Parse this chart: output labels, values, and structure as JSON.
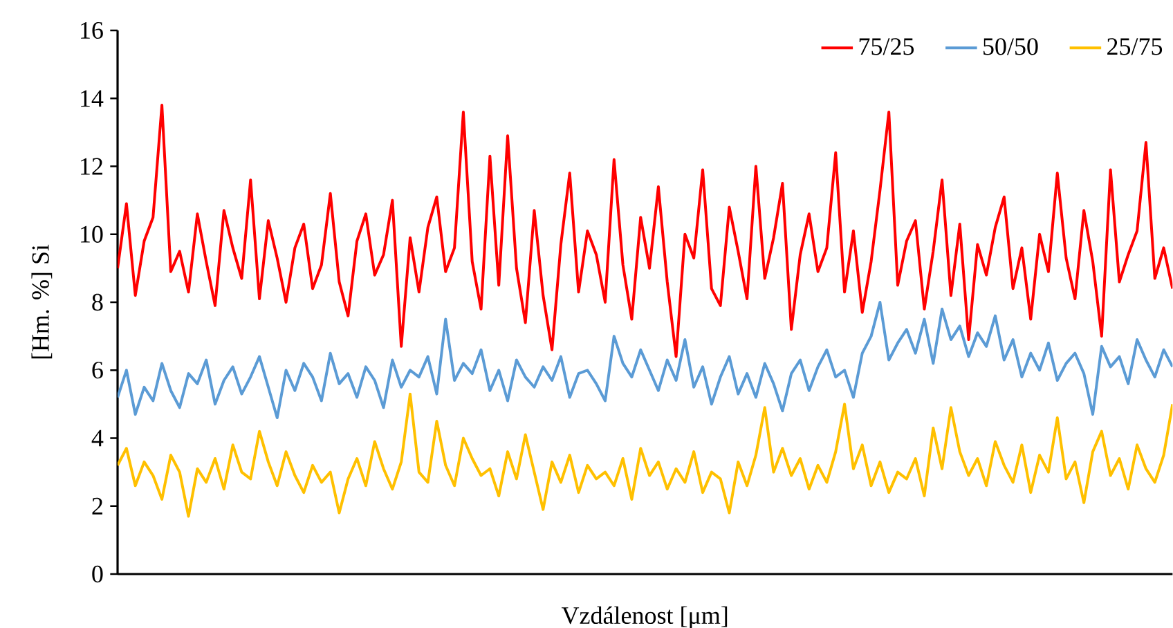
{
  "chart_data": {
    "type": "line",
    "xlabel": "Vzdálenost [μm]",
    "ylabel": "[Hm. %] Si",
    "categories": [
      null,
      null,
      null,
      null,
      null,
      null,
      null,
      null,
      null,
      null,
      null,
      null,
      null,
      null,
      null,
      null,
      null,
      null,
      null,
      null,
      null,
      null,
      null,
      null,
      null,
      null,
      null,
      null,
      null,
      null,
      null,
      null,
      null,
      null,
      null,
      null,
      null,
      null,
      null,
      null,
      null,
      null,
      null,
      null,
      null,
      null,
      null,
      null,
      null,
      null,
      null,
      null,
      null,
      null,
      null,
      null,
      null,
      null,
      null,
      null,
      null,
      null,
      null,
      null,
      null,
      null,
      null,
      null,
      null,
      null,
      null,
      null,
      null,
      null,
      null,
      null,
      null,
      null,
      null,
      null,
      null,
      null,
      null,
      null,
      null,
      null,
      null,
      null,
      null,
      null,
      null,
      null,
      null,
      null,
      null,
      null,
      null,
      null,
      null,
      null,
      null,
      null,
      null,
      null,
      null,
      null,
      null,
      null,
      null,
      null,
      null,
      null,
      null,
      null,
      null,
      null,
      null,
      null,
      null,
      null
    ],
    "series": [
      {
        "name": "75/25",
        "color": "#ff0000",
        "values": [
          9.0,
          10.9,
          8.2,
          9.8,
          10.5,
          13.8,
          8.9,
          9.5,
          8.3,
          10.6,
          9.2,
          7.9,
          10.7,
          9.6,
          8.7,
          11.6,
          8.1,
          10.4,
          9.3,
          8.0,
          9.6,
          10.3,
          8.4,
          9.1,
          11.2,
          8.6,
          7.6,
          9.8,
          10.6,
          8.8,
          9.4,
          11.0,
          6.7,
          9.9,
          8.3,
          10.2,
          11.1,
          8.9,
          9.6,
          13.6,
          9.2,
          7.8,
          12.3,
          8.5,
          12.9,
          9.0,
          7.4,
          10.7,
          8.2,
          6.6,
          9.7,
          11.8,
          8.3,
          10.1,
          9.4,
          8.0,
          12.2,
          9.1,
          7.5,
          10.5,
          9.0,
          11.4,
          8.6,
          6.4,
          10.0,
          9.3,
          11.9,
          8.4,
          7.9,
          10.8,
          9.5,
          8.1,
          12.0,
          8.7,
          9.9,
          11.5,
          7.2,
          9.4,
          10.6,
          8.9,
          9.6,
          12.4,
          8.3,
          10.1,
          7.7,
          9.2,
          11.3,
          13.6,
          8.5,
          9.8,
          10.4,
          7.8,
          9.5,
          11.6,
          8.2,
          10.3,
          6.9,
          9.7,
          8.8,
          10.2,
          11.1,
          8.4,
          9.6,
          7.5,
          10.0,
          8.9,
          11.8,
          9.3,
          8.1,
          10.7,
          9.2,
          7.0,
          11.9,
          8.6,
          9.4,
          10.1,
          12.7,
          8.7,
          9.6,
          8.4
        ]
      },
      {
        "name": "50/50",
        "color": "#5b9bd5",
        "values": [
          5.2,
          6.0,
          4.7,
          5.5,
          5.1,
          6.2,
          5.4,
          4.9,
          5.9,
          5.6,
          6.3,
          5.0,
          5.7,
          6.1,
          5.3,
          5.8,
          6.4,
          5.5,
          4.6,
          6.0,
          5.4,
          6.2,
          5.8,
          5.1,
          6.5,
          5.6,
          5.9,
          5.2,
          6.1,
          5.7,
          4.9,
          6.3,
          5.5,
          6.0,
          5.8,
          6.4,
          5.3,
          7.5,
          5.7,
          6.2,
          5.9,
          6.6,
          5.4,
          6.0,
          5.1,
          6.3,
          5.8,
          5.5,
          6.1,
          5.7,
          6.4,
          5.2,
          5.9,
          6.0,
          5.6,
          5.1,
          7.0,
          6.2,
          5.8,
          6.6,
          6.0,
          5.4,
          6.3,
          5.7,
          6.9,
          5.5,
          6.1,
          5.0,
          5.8,
          6.4,
          5.3,
          5.9,
          5.2,
          6.2,
          5.6,
          4.8,
          5.9,
          6.3,
          5.4,
          6.1,
          6.6,
          5.8,
          6.0,
          5.2,
          6.5,
          7.0,
          8.0,
          6.3,
          6.8,
          7.2,
          6.5,
          7.5,
          6.2,
          7.8,
          6.9,
          7.3,
          6.4,
          7.1,
          6.7,
          7.6,
          6.3,
          6.9,
          5.8,
          6.5,
          6.0,
          6.8,
          5.7,
          6.2,
          6.5,
          5.9,
          4.7,
          6.7,
          6.1,
          6.4,
          5.6,
          6.9,
          6.3,
          5.8,
          6.6,
          6.1
        ]
      },
      {
        "name": "25/75",
        "color": "#ffc000",
        "values": [
          3.2,
          3.7,
          2.6,
          3.3,
          2.9,
          2.2,
          3.5,
          3.0,
          1.7,
          3.1,
          2.7,
          3.4,
          2.5,
          3.8,
          3.0,
          2.8,
          4.2,
          3.3,
          2.6,
          3.6,
          2.9,
          2.4,
          3.2,
          2.7,
          3.0,
          1.8,
          2.8,
          3.4,
          2.6,
          3.9,
          3.1,
          2.5,
          3.3,
          5.3,
          3.0,
          2.7,
          4.5,
          3.2,
          2.6,
          4.0,
          3.4,
          2.9,
          3.1,
          2.3,
          3.6,
          2.8,
          4.1,
          3.0,
          1.9,
          3.3,
          2.7,
          3.5,
          2.4,
          3.2,
          2.8,
          3.0,
          2.6,
          3.4,
          2.2,
          3.7,
          2.9,
          3.3,
          2.5,
          3.1,
          2.7,
          3.6,
          2.4,
          3.0,
          2.8,
          1.8,
          3.3,
          2.6,
          3.5,
          4.9,
          3.0,
          3.7,
          2.9,
          3.4,
          2.5,
          3.2,
          2.7,
          3.6,
          5.0,
          3.1,
          3.8,
          2.6,
          3.3,
          2.4,
          3.0,
          2.8,
          3.4,
          2.3,
          4.3,
          3.1,
          4.9,
          3.6,
          2.9,
          3.4,
          2.6,
          3.9,
          3.2,
          2.7,
          3.8,
          2.4,
          3.5,
          3.0,
          4.6,
          2.8,
          3.3,
          2.1,
          3.6,
          4.2,
          2.9,
          3.4,
          2.5,
          3.8,
          3.1,
          2.7,
          3.5,
          5.0
        ]
      }
    ],
    "ylim": [
      0,
      16
    ],
    "yticks": [
      0,
      2,
      4,
      6,
      8,
      10,
      12,
      14,
      16
    ],
    "legend": "top right",
    "tick_labels": "y",
    "marker": "none",
    "line_style": "solid",
    "grid": false
  }
}
